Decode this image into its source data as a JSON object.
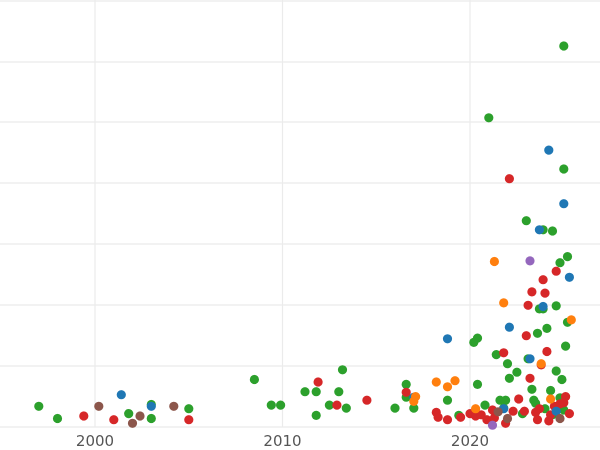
{
  "chart_data": {
    "type": "scatter",
    "title": "",
    "xlabel": "",
    "ylabel": "",
    "xlim": [
      1995.2,
      2026.5
    ],
    "ylim": [
      0,
      70
    ],
    "x_ticks": [
      2000,
      2010,
      2020
    ],
    "x_tick_labels": [
      "2000",
      "2010",
      "2020"
    ],
    "y_gridlines": [
      0,
      10,
      20,
      30,
      40,
      50,
      60,
      70
    ],
    "grid": true,
    "legend": "none",
    "groups": [
      {
        "color": "#2ca02c",
        "points": [
          [
            1997.0,
            3.4
          ],
          [
            1998.0,
            1.4
          ],
          [
            2001.8,
            2.2
          ],
          [
            2003.0,
            3.7
          ],
          [
            2003.0,
            1.4
          ],
          [
            2005.0,
            3.0
          ],
          [
            2008.5,
            7.8
          ],
          [
            2009.4,
            3.6
          ],
          [
            2009.9,
            3.6
          ],
          [
            2011.2,
            5.8
          ],
          [
            2011.8,
            5.8
          ],
          [
            2011.8,
            1.9
          ],
          [
            2012.5,
            3.6
          ],
          [
            2013.0,
            5.8
          ],
          [
            2013.2,
            9.4
          ],
          [
            2013.4,
            3.1
          ],
          [
            2016.0,
            3.1
          ],
          [
            2016.6,
            7.0
          ],
          [
            2016.6,
            4.9
          ],
          [
            2017.0,
            3.1
          ],
          [
            2018.8,
            4.4
          ],
          [
            2019.4,
            1.9
          ],
          [
            2020.2,
            13.9
          ],
          [
            2020.4,
            14.6
          ],
          [
            2020.4,
            7.0
          ],
          [
            2020.8,
            3.6
          ],
          [
            2021.0,
            50.8
          ],
          [
            2021.4,
            11.9
          ],
          [
            2021.6,
            4.4
          ],
          [
            2021.8,
            3.1
          ],
          [
            2021.9,
            4.4
          ],
          [
            2022.0,
            10.4
          ],
          [
            2022.1,
            8.0
          ],
          [
            2022.5,
            9.0
          ],
          [
            2023.0,
            33.9
          ],
          [
            2023.1,
            11.2
          ],
          [
            2023.3,
            6.2
          ],
          [
            2023.5,
            3.9
          ],
          [
            2023.6,
            15.4
          ],
          [
            2023.7,
            19.4
          ],
          [
            2023.9,
            32.4
          ],
          [
            2023.9,
            19.4
          ],
          [
            2024.1,
            16.2
          ],
          [
            2024.3,
            6.0
          ],
          [
            2024.4,
            32.2
          ],
          [
            2024.6,
            19.9
          ],
          [
            2024.6,
            9.2
          ],
          [
            2024.8,
            27.0
          ],
          [
            2024.9,
            7.8
          ],
          [
            2025.0,
            42.4
          ],
          [
            2025.0,
            62.6
          ],
          [
            2025.1,
            13.3
          ],
          [
            2025.2,
            28.0
          ],
          [
            2025.2,
            17.2
          ],
          [
            2024.0,
            3.0
          ],
          [
            2024.4,
            2.0
          ],
          [
            2022.8,
            2.2
          ],
          [
            2023.4,
            4.4
          ],
          [
            2024.8,
            4.8
          ],
          [
            2025.0,
            2.8
          ]
        ]
      },
      {
        "color": "#d62728",
        "points": [
          [
            1999.4,
            1.8
          ],
          [
            2001.0,
            1.2
          ],
          [
            2005.0,
            1.2
          ],
          [
            2011.9,
            7.4
          ],
          [
            2012.9,
            3.6
          ],
          [
            2014.5,
            4.4
          ],
          [
            2016.6,
            5.7
          ],
          [
            2018.2,
            2.4
          ],
          [
            2018.3,
            1.6
          ],
          [
            2018.8,
            1.2
          ],
          [
            2019.5,
            1.6
          ],
          [
            2020.0,
            2.2
          ],
          [
            2020.3,
            1.8
          ],
          [
            2020.6,
            2.0
          ],
          [
            2020.9,
            1.2
          ],
          [
            2021.3,
            1.5
          ],
          [
            2021.8,
            12.2
          ],
          [
            2021.9,
            0.6
          ],
          [
            2022.1,
            40.8
          ],
          [
            2022.3,
            2.6
          ],
          [
            2022.9,
            2.6
          ],
          [
            2023.0,
            15.0
          ],
          [
            2023.1,
            20.0
          ],
          [
            2023.2,
            8.0
          ],
          [
            2023.3,
            22.2
          ],
          [
            2023.5,
            2.4
          ],
          [
            2023.7,
            3.0
          ],
          [
            2023.8,
            10.2
          ],
          [
            2023.9,
            24.2
          ],
          [
            2024.1,
            12.4
          ],
          [
            2024.0,
            22.0
          ],
          [
            2024.3,
            2.0
          ],
          [
            2024.6,
            25.6
          ],
          [
            2024.8,
            3.8
          ],
          [
            2025.1,
            5.0
          ],
          [
            2025.3,
            2.2
          ],
          [
            2024.5,
            3.4
          ],
          [
            2023.6,
            1.2
          ],
          [
            2024.2,
            1.0
          ],
          [
            2022.6,
            4.6
          ],
          [
            2021.2,
            2.8
          ],
          [
            2025.0,
            4.0
          ]
        ]
      },
      {
        "color": "#1f77b4",
        "points": [
          [
            2001.4,
            5.3
          ],
          [
            2003.0,
            3.4
          ],
          [
            2017.0,
            4.9
          ],
          [
            2018.8,
            14.5
          ],
          [
            2022.1,
            16.4
          ],
          [
            2023.2,
            11.2
          ],
          [
            2023.7,
            32.4
          ],
          [
            2023.9,
            19.8
          ],
          [
            2024.2,
            45.5
          ],
          [
            2025.0,
            36.7
          ],
          [
            2025.3,
            24.6
          ],
          [
            2021.8,
            3.0
          ],
          [
            2024.6,
            2.6
          ]
        ]
      },
      {
        "color": "#ff7f0e",
        "points": [
          [
            2017.0,
            4.2
          ],
          [
            2017.1,
            5.0
          ],
          [
            2018.2,
            7.4
          ],
          [
            2018.8,
            6.6
          ],
          [
            2019.2,
            7.6
          ],
          [
            2020.3,
            3.0
          ],
          [
            2021.3,
            27.2
          ],
          [
            2021.8,
            20.4
          ],
          [
            2023.8,
            10.4
          ],
          [
            2025.4,
            17.6
          ],
          [
            2024.3,
            4.6
          ]
        ]
      },
      {
        "color": "#8c564b",
        "points": [
          [
            2000.2,
            3.4
          ],
          [
            2002.0,
            0.6
          ],
          [
            2002.4,
            1.8
          ],
          [
            2004.2,
            3.4
          ],
          [
            2021.5,
            2.5
          ],
          [
            2022.0,
            1.4
          ],
          [
            2024.8,
            1.4
          ]
        ]
      },
      {
        "color": "#9467bd",
        "points": [
          [
            2021.2,
            0.3
          ],
          [
            2023.2,
            27.3
          ]
        ]
      }
    ]
  }
}
